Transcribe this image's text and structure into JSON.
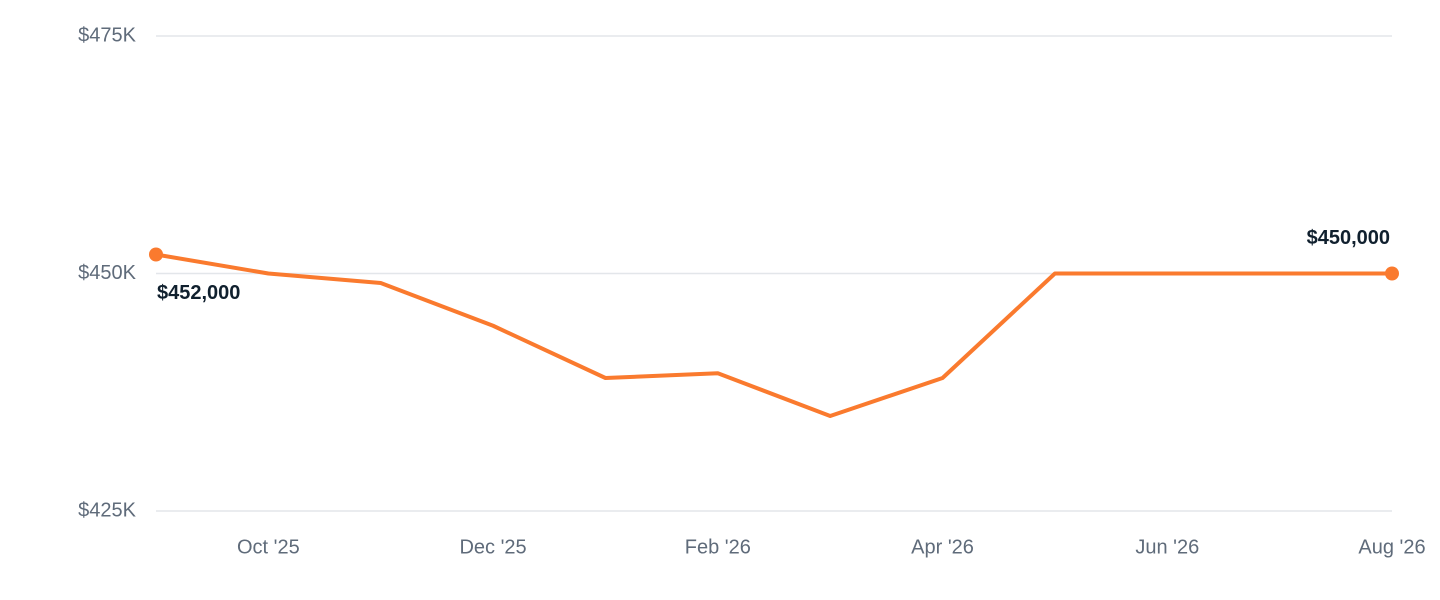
{
  "chart_data": {
    "type": "line",
    "categories": [
      null,
      "Oct '25",
      null,
      "Dec '25",
      null,
      "Feb '26",
      null,
      "Apr '26",
      null,
      "Jun '26",
      null,
      "Aug '26"
    ],
    "series": [
      {
        "color": "#fa7a2e",
        "values": [
          452000,
          450000,
          449000,
          444500,
          439000,
          439500,
          435000,
          439000,
          450000,
          450000,
          450000,
          450000
        ],
        "value_labels": [
          "$452,000",
          null,
          null,
          null,
          null,
          null,
          null,
          null,
          null,
          null,
          null,
          "$450,000"
        ]
      }
    ],
    "ylim": [
      425000,
      475000
    ],
    "yticks": [
      {
        "value": 425000,
        "label": "$425K"
      },
      {
        "value": 450000,
        "label": "$450K"
      },
      {
        "value": 475000,
        "label": "$475K"
      }
    ],
    "grid": true
  }
}
